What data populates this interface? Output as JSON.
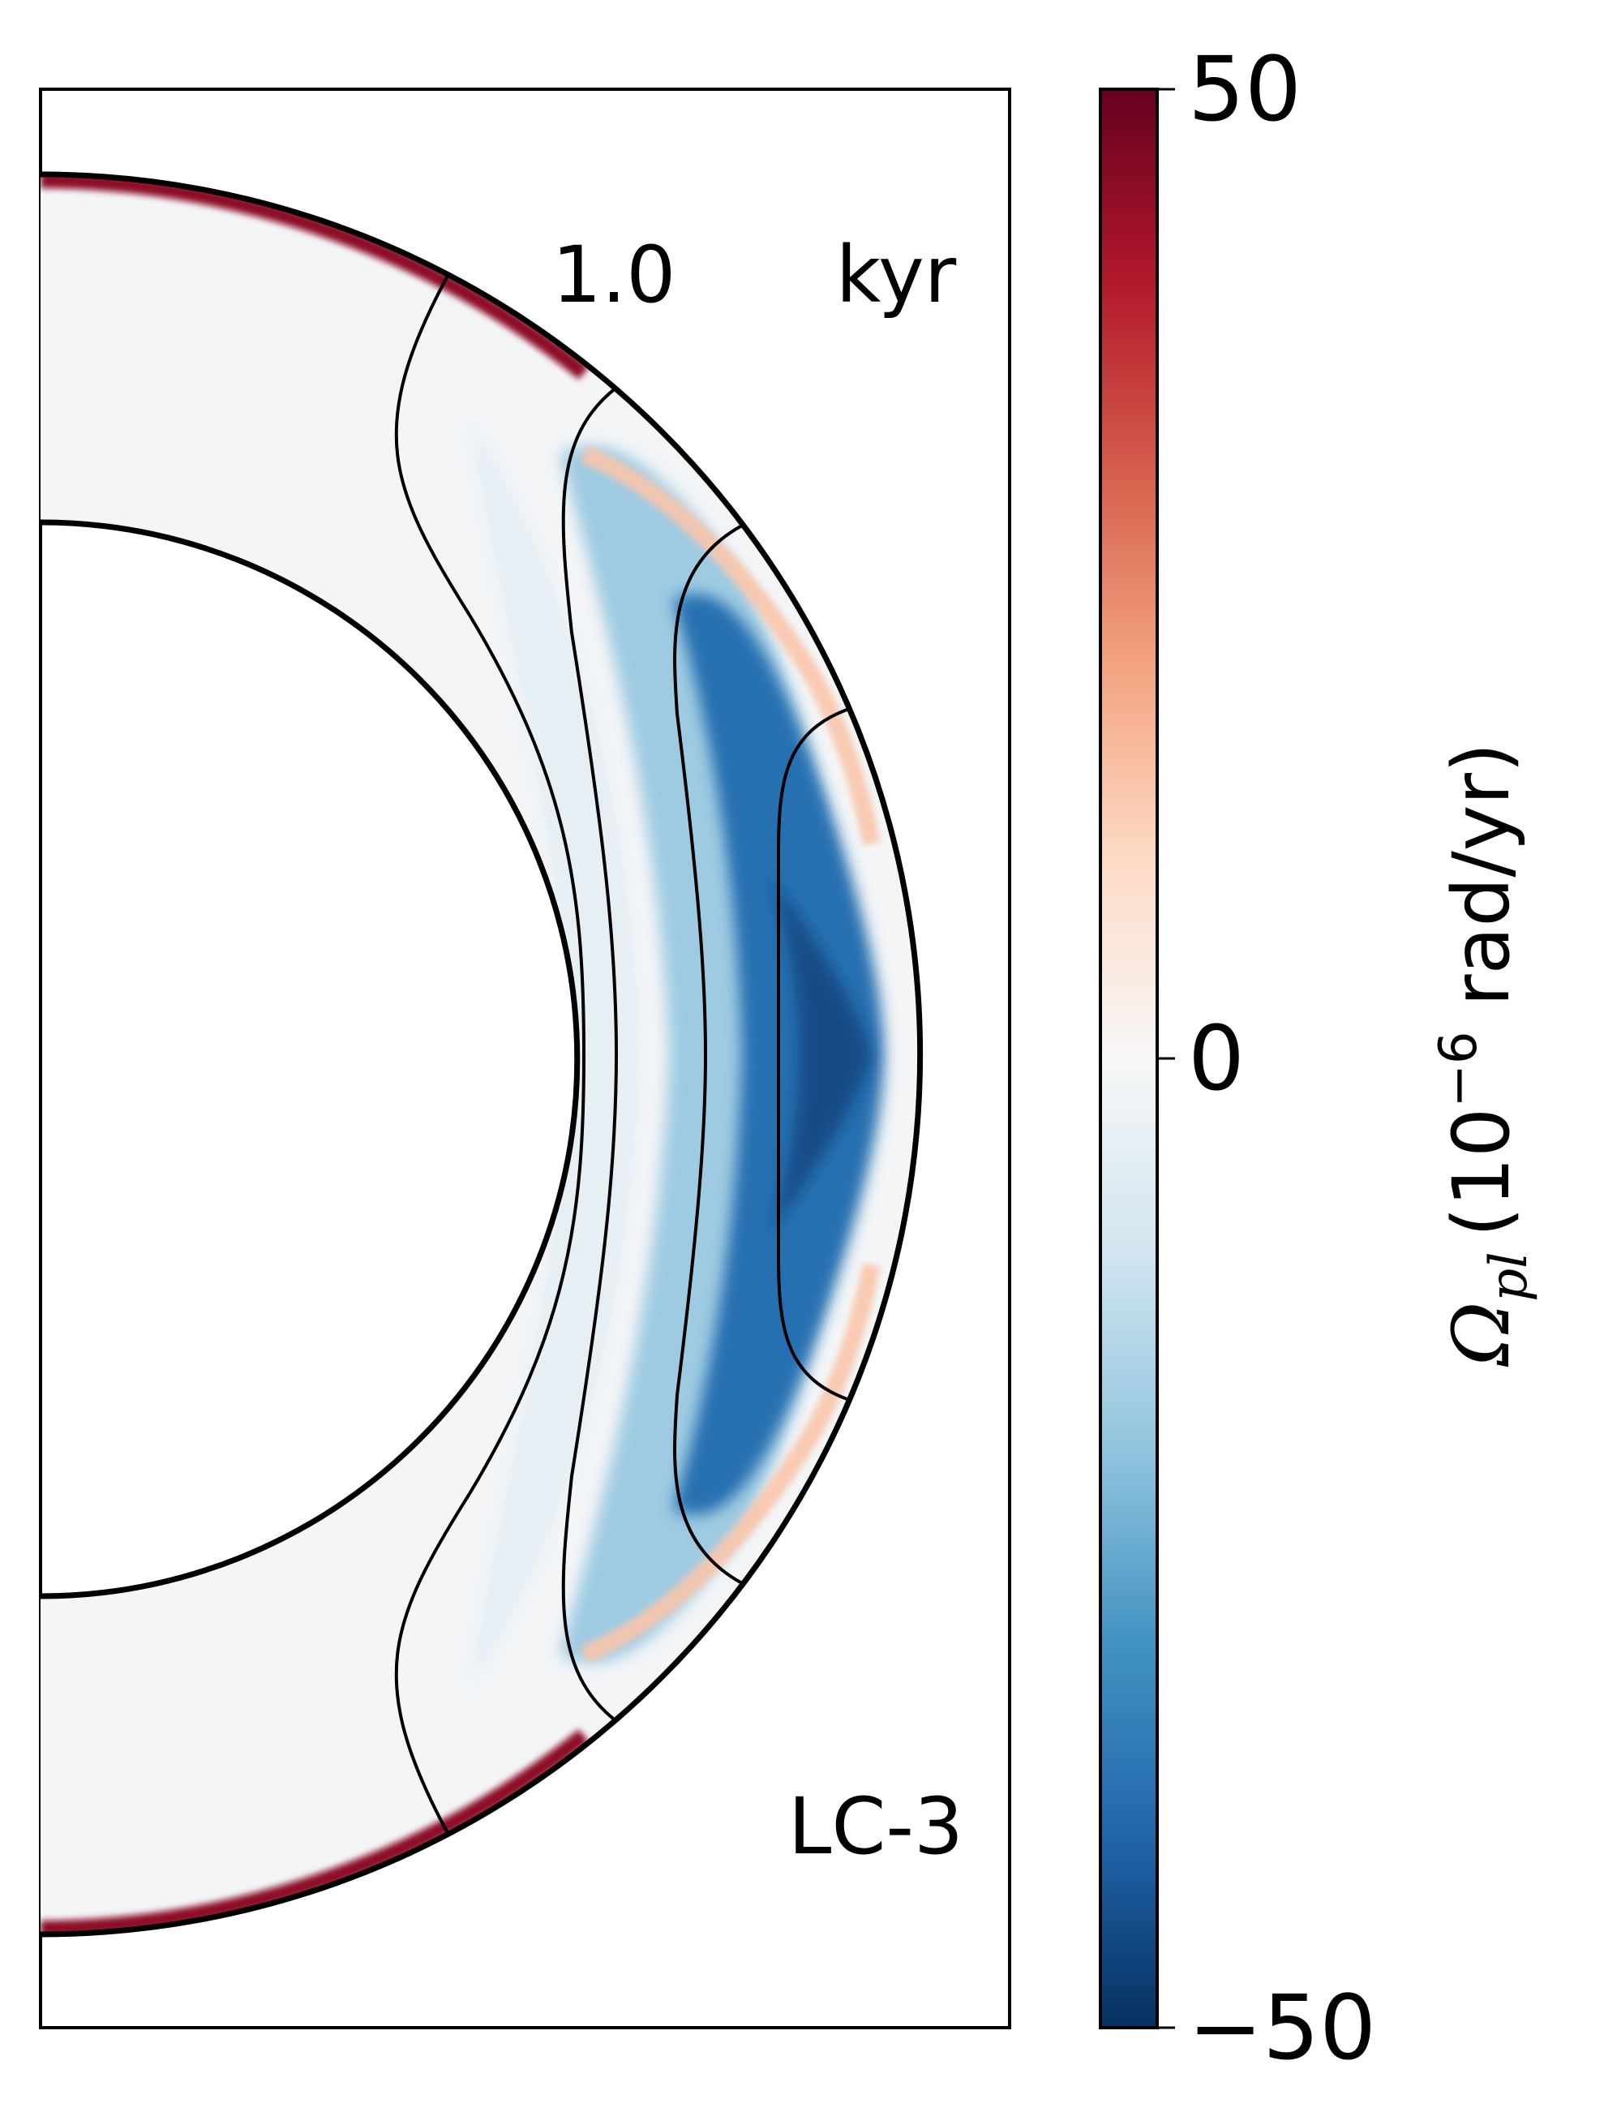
{
  "chart_data": {
    "type": "heatmap",
    "subtype": "meridional-section contour plot (half spherical shell)",
    "title": "",
    "time_label": {
      "value": "1.0",
      "unit": "kyr"
    },
    "model_label": "LC-3",
    "colorbar": {
      "label": "Ω_pl (10^-6 rad/yr)",
      "label_parts": {
        "symbol": "Ω",
        "subscript": "pl",
        "prefix": "(10",
        "exponent": "−6",
        "suffix": " rad/yr)"
      },
      "vmin": -50,
      "vmax": 50,
      "ticks": [
        {
          "value": 50,
          "label": "50"
        },
        {
          "value": 0,
          "label": "0"
        },
        {
          "value": -50,
          "label": "−50"
        }
      ],
      "colormap": "RdBu_r",
      "stops": [
        "#053061",
        "#2166ac",
        "#4393c3",
        "#92c5de",
        "#d1e5f0",
        "#f7f7f7",
        "#fddbc7",
        "#f4a582",
        "#d6604d",
        "#b2182b",
        "#67001f"
      ]
    },
    "field_features": [
      {
        "name": "equatorial-negative-lobe",
        "peak_value": -38
      },
      {
        "name": "mid-shell-negative-band",
        "peak_value": -18
      },
      {
        "name": "inner-weak-negative-band",
        "peak_value": -6
      },
      {
        "name": "positive-stripe",
        "peak_value": 14
      },
      {
        "name": "surface-high-latitude-positive-band",
        "peak_value": 45
      }
    ],
    "field_lines": 4,
    "grid": false,
    "legend": "none"
  },
  "colors": {
    "background": "#ffffff",
    "shell_background": "#f3f5f7",
    "axes": "#000000"
  }
}
